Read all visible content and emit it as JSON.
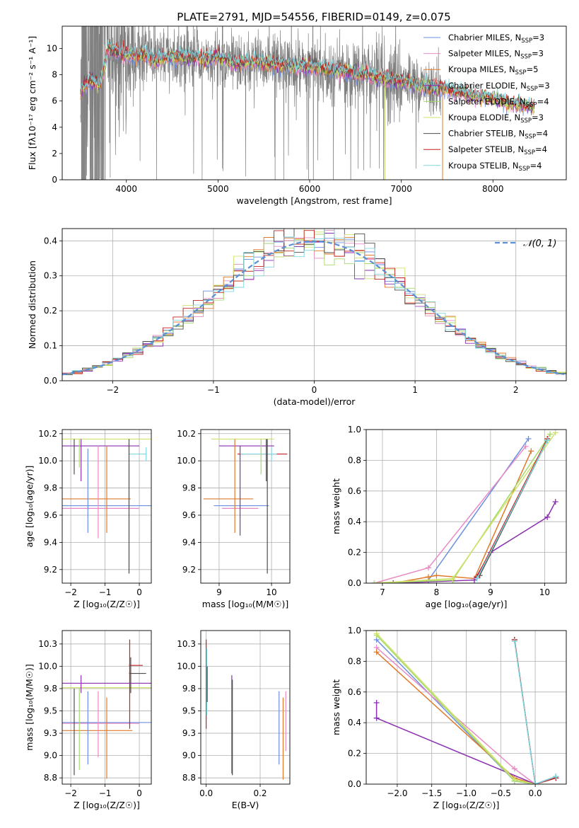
{
  "page_title": "PLATE=2791, MJD=54556, FIBERID=0149, z=0.075",
  "colors": {
    "chabrier_miles": "#6b8fe0",
    "salpeter_miles": "#e88bc4",
    "kroupa_miles": "#e07a2a",
    "chabrier_elodie": "#8a2fb0",
    "salpeter_elodie": "#a6d96a",
    "kroupa_elodie": "#cfe36b",
    "chabrier_stelib": "#4d4d4d",
    "salpeter_stelib": "#c42020",
    "kroupa_stelib": "#7fd6e0",
    "data": "#7f7f7f",
    "normal": "#5b8fd6",
    "grid": "#b0b0b0"
  },
  "legend": [
    {
      "label": "Chabrier MILES, N",
      "sub": "SSP",
      "tail": "=3",
      "color": "#6b8fe0"
    },
    {
      "label": "Salpeter MILES, N",
      "sub": "SSP",
      "tail": "=3",
      "color": "#e88bc4"
    },
    {
      "label": "Kroupa MILES, N",
      "sub": "SSP",
      "tail": "=5",
      "color": "#e07a2a"
    },
    {
      "label": "Chabrier ELODIE, N",
      "sub": "SSP",
      "tail": "=3",
      "color": "#8a2fb0"
    },
    {
      "label": "Salpeter ELODIE, N",
      "sub": "SSP",
      "tail": "=4",
      "color": "#a6d96a"
    },
    {
      "label": "Kroupa ELODIE, N",
      "sub": "SSP",
      "tail": "=3",
      "color": "#cfe36b"
    },
    {
      "label": "Chabrier STELIB, N",
      "sub": "SSP",
      "tail": "=4",
      "color": "#4d4d4d"
    },
    {
      "label": "Salpeter STELIB, N",
      "sub": "SSP",
      "tail": "=4",
      "color": "#c42020"
    },
    {
      "label": "Kroupa STELIB, N",
      "sub": "SSP",
      "tail": "=4",
      "color": "#7fd6e0"
    }
  ],
  "chart_data": [
    {
      "id": "spectrum",
      "type": "line",
      "xlabel": "wavelength [Angstrom, rest frame]",
      "ylabel": "Flux [fλ10⁻¹⁷ erg cm⁻² s⁻¹ A⁻¹]",
      "xlim": [
        3300,
        8800
      ],
      "ylim": [
        0,
        11.7
      ],
      "xticks": [
        4000,
        5000,
        6000,
        7000,
        8000
      ],
      "yticks": [
        0,
        2,
        4,
        6,
        8,
        10
      ],
      "data_range": [
        3500,
        7430
      ],
      "model_range": [
        3500,
        8450
      ],
      "model_curve": {
        "x": [
          3500,
          3600,
          3700,
          3750,
          3800,
          3900,
          4000,
          4100,
          4200,
          4300,
          4500,
          4700,
          4900,
          5000,
          5200,
          5400,
          5600,
          5800,
          6000,
          6200,
          6400,
          6600,
          6800,
          7000,
          7200,
          7400,
          7600,
          7800,
          8000,
          8200,
          8450
        ],
        "y": [
          6.8,
          7.6,
          7.2,
          8.2,
          10.1,
          9.7,
          9.5,
          9.4,
          9.6,
          9.0,
          9.4,
          9.3,
          9.2,
          9.3,
          8.9,
          9.0,
          8.8,
          8.7,
          8.6,
          8.4,
          8.2,
          8.0,
          7.7,
          7.5,
          7.2,
          7.0,
          6.7,
          6.4,
          6.2,
          5.8,
          5.5
        ]
      }
    },
    {
      "id": "residual-histogram",
      "type": "line",
      "xlabel": "(data-model)/error",
      "ylabel": "Normed distribution",
      "xlim": [
        -2.5,
        2.5
      ],
      "ylim": [
        0,
        0.435
      ],
      "xticks": [
        -2,
        -1,
        0,
        1,
        2
      ],
      "yticks": [
        0.0,
        0.1,
        0.2,
        0.3,
        0.4
      ],
      "legend": "𝒩(0, 1)",
      "bin_width": 0.1,
      "histogram_range": [
        -2.5,
        2.5
      ]
    },
    {
      "id": "age-vs-Z",
      "type": "scatter",
      "xlabel": "Z [log₁₀(Z/Z☉)]",
      "ylabel": "age  [log₁₀(age/yr)]",
      "xlim": [
        -2.25,
        0.35
      ],
      "ylim": [
        9.1,
        10.23
      ],
      "xticks": [
        -2,
        -1,
        0
      ],
      "yticks": [
        9.2,
        9.4,
        9.6,
        9.8,
        10.0,
        10.2
      ],
      "hlines": [
        {
          "y": 10.16,
          "x0": -2.25,
          "x1": 0.35,
          "color": "#cfe36b"
        },
        {
          "y": 10.11,
          "x0": -2.25,
          "x1": 0.0,
          "color": "#8a2fb0"
        },
        {
          "y": 10.05,
          "x0": -0.3,
          "x1": 0.2,
          "color": "#7fd6e0"
        },
        {
          "y": 9.72,
          "x0": -2.25,
          "x1": -0.25,
          "color": "#e07a2a"
        },
        {
          "y": 9.67,
          "x0": -2.25,
          "x1": 0.35,
          "color": "#6b8fe0"
        },
        {
          "y": 9.65,
          "x0": -2.25,
          "x1": 0.0,
          "color": "#e88bc4"
        }
      ],
      "vlines": [
        {
          "x": -1.9,
          "y0": 9.9,
          "y1": 10.16,
          "color": "#4d4d4d"
        },
        {
          "x": -1.75,
          "y0": 9.95,
          "y1": 10.16,
          "color": "#a6d96a"
        },
        {
          "x": -1.7,
          "y0": 9.85,
          "y1": 10.16,
          "color": "#8a2fb0"
        },
        {
          "x": -1.5,
          "y0": 9.47,
          "y1": 10.09,
          "color": "#6b8fe0"
        },
        {
          "x": -1.2,
          "y0": 9.43,
          "y1": 10.11,
          "color": "#e88bc4"
        },
        {
          "x": -0.95,
          "y0": 9.47,
          "y1": 10.11,
          "color": "#e07a2a"
        },
        {
          "x": -0.3,
          "y0": 9.17,
          "y1": 10.16,
          "color": "#4d4d4d"
        },
        {
          "x": 0.2,
          "y0": 10.0,
          "y1": 10.1,
          "color": "#7fd6e0"
        }
      ]
    },
    {
      "id": "age-vs-mass",
      "type": "scatter",
      "xlabel": "mass [log₁₀(M/M☉)]",
      "ylabel": "",
      "xlim": [
        8.65,
        10.35
      ],
      "ylim": [
        9.1,
        10.23
      ],
      "xticks": [
        9,
        10
      ],
      "yticks": [
        9.2,
        9.4,
        9.6,
        9.8,
        10.0,
        10.2
      ],
      "hlines": [
        {
          "y": 10.16,
          "x0": 8.85,
          "x1": 10.05,
          "color": "#cfe36b"
        },
        {
          "y": 10.11,
          "x0": 9.0,
          "x1": 10.05,
          "color": "#8a2fb0"
        },
        {
          "y": 10.05,
          "x0": 9.35,
          "x1": 10.3,
          "color": "#c42020"
        },
        {
          "y": 10.05,
          "x0": 9.4,
          "x1": 10.1,
          "color": "#7fd6e0"
        },
        {
          "y": 9.72,
          "x0": 8.7,
          "x1": 9.65,
          "color": "#e07a2a"
        },
        {
          "y": 9.67,
          "x0": 8.9,
          "x1": 9.95,
          "color": "#6b8fe0"
        },
        {
          "y": 9.65,
          "x0": 9.05,
          "x1": 9.75,
          "color": "#e88bc4"
        }
      ],
      "vlines": [
        {
          "x": 9.3,
          "y0": 9.47,
          "y1": 10.16,
          "color": "#e07a2a"
        },
        {
          "x": 9.4,
          "y0": 9.45,
          "y1": 10.11,
          "color": "#8a2fb0"
        },
        {
          "x": 9.8,
          "y0": 9.9,
          "y1": 10.16,
          "color": "#a6d96a"
        },
        {
          "x": 9.9,
          "y0": 9.85,
          "y1": 10.16,
          "color": "#4d4d4d"
        },
        {
          "x": 9.92,
          "y0": 9.17,
          "y1": 10.16,
          "color": "#4d4d4d"
        },
        {
          "x": 10.0,
          "y0": 10.0,
          "y1": 10.1,
          "color": "#7fd6e0"
        }
      ]
    },
    {
      "id": "mass-weight-vs-age",
      "type": "line",
      "xlabel": "age  [log₁₀(age/yr)]",
      "ylabel": "mass weight",
      "xlim": [
        6.7,
        10.4
      ],
      "ylim": [
        0,
        1.0
      ],
      "xticks": [
        7,
        8,
        9,
        10
      ],
      "yticks": [
        0.0,
        0.2,
        0.4,
        0.6,
        0.8,
        1.0
      ],
      "series": [
        {
          "color": "#6b8fe0",
          "x": [
            6.85,
            7.85,
            9.7
          ],
          "y": [
            0.0,
            0.02,
            0.94
          ]
        },
        {
          "color": "#e88bc4",
          "x": [
            6.85,
            7.85,
            9.65
          ],
          "y": [
            0.0,
            0.1,
            0.89
          ]
        },
        {
          "color": "#e07a2a",
          "x": [
            7.2,
            7.85,
            8.0,
            8.7,
            9.75
          ],
          "y": [
            0.0,
            0.04,
            0.05,
            0.03,
            0.86
          ]
        },
        {
          "color": "#8a2fb0",
          "x": [
            7.2,
            8.7,
            9.0,
            10.05,
            10.2
          ],
          "y": [
            0.0,
            0.02,
            0.2,
            0.43,
            0.53
          ]
        },
        {
          "color": "#a6d96a",
          "x": [
            6.85,
            8.3,
            10.1
          ],
          "y": [
            0.0,
            0.02,
            0.97
          ]
        },
        {
          "color": "#cfe36b",
          "x": [
            6.85,
            8.3,
            10.2
          ],
          "y": [
            0.0,
            0.03,
            0.98
          ]
        },
        {
          "color": "#4d4d4d",
          "x": [
            8.8,
            10.05
          ],
          "y": [
            0.05,
            0.93
          ]
        },
        {
          "color": "#c42020",
          "x": [
            8.75,
            10.05
          ],
          "y": [
            0.04,
            0.94
          ]
        },
        {
          "color": "#7fd6e0",
          "x": [
            8.75,
            10.05
          ],
          "y": [
            0.03,
            0.93
          ]
        }
      ]
    },
    {
      "id": "mass-vs-Z",
      "type": "scatter",
      "xlabel": "Z [log₁₀(Z/Z☉)]",
      "ylabel": "mass [log₁₀(M/M☉)]",
      "xlim": [
        -2.25,
        0.35
      ],
      "ylim": [
        8.68,
        10.4
      ],
      "xticks": [
        -2,
        -1,
        0
      ],
      "yticks": [
        8.75,
        9.0,
        9.25,
        9.5,
        9.75,
        10.0,
        10.25
      ],
      "hlines": [
        {
          "y": 10.01,
          "x0": -0.3,
          "x1": 0.1,
          "color": "#c42020"
        },
        {
          "y": 9.92,
          "x0": -0.3,
          "x1": 0.2,
          "color": "#4d4d4d"
        },
        {
          "y": 9.81,
          "x0": -2.25,
          "x1": 0.35,
          "color": "#8a2fb0"
        },
        {
          "y": 9.76,
          "x0": -2.25,
          "x1": 0.35,
          "color": "#cfe36b"
        },
        {
          "y": 9.37,
          "x0": -2.25,
          "x1": 0.35,
          "color": "#6b8fe0"
        },
        {
          "y": 9.36,
          "x0": -2.25,
          "x1": 0.0,
          "color": "#e88bc4"
        },
        {
          "y": 9.28,
          "x0": -2.25,
          "x1": -0.2,
          "color": "#e07a2a"
        }
      ],
      "vlines": [
        {
          "x": -1.9,
          "y0": 8.78,
          "y1": 9.75,
          "color": "#4d4d4d"
        },
        {
          "x": -1.75,
          "y0": 8.84,
          "y1": 9.76,
          "color": "#a6d96a"
        },
        {
          "x": -1.7,
          "y0": 9.7,
          "y1": 9.9,
          "color": "#8a2fb0"
        },
        {
          "x": -1.5,
          "y0": 8.9,
          "y1": 9.72,
          "color": "#6b8fe0"
        },
        {
          "x": -1.2,
          "y0": 8.98,
          "y1": 9.72,
          "color": "#e88bc4"
        },
        {
          "x": -0.95,
          "y0": 8.74,
          "y1": 9.65,
          "color": "#e07a2a"
        },
        {
          "x": -0.28,
          "y0": 9.3,
          "y1": 10.3,
          "color": "#c42020"
        },
        {
          "x": -0.25,
          "y0": 9.7,
          "y1": 10.1,
          "color": "#4d4d4d"
        }
      ]
    },
    {
      "id": "mass-vs-EBV",
      "type": "scatter",
      "xlabel": "E(B-V)",
      "ylabel": "",
      "xlim": [
        -0.02,
        0.31
      ],
      "ylim": [
        8.68,
        10.4
      ],
      "xticks": [
        0.0,
        0.2
      ],
      "yticks": [
        8.75,
        9.0,
        9.25,
        9.5,
        9.75,
        10.0,
        10.25
      ],
      "vlines": [
        {
          "x": 0.0,
          "y0": 9.3,
          "y1": 10.3,
          "color": "#c42020"
        },
        {
          "x": 0.002,
          "y0": 9.45,
          "y1": 10.2,
          "color": "#7fd6e0"
        },
        {
          "x": 0.004,
          "y0": 9.6,
          "y1": 10.0,
          "color": "#4d4d4d"
        },
        {
          "x": 0.095,
          "y0": 8.8,
          "y1": 9.9,
          "color": "#8a2fb0"
        },
        {
          "x": 0.097,
          "y0": 8.78,
          "y1": 9.85,
          "color": "#4d4d4d"
        },
        {
          "x": 0.27,
          "y0": 8.9,
          "y1": 9.72,
          "color": "#6b8fe0"
        },
        {
          "x": 0.285,
          "y0": 8.73,
          "y1": 9.65,
          "color": "#e07a2a"
        },
        {
          "x": 0.295,
          "y0": 9.05,
          "y1": 9.72,
          "color": "#e88bc4"
        }
      ]
    },
    {
      "id": "mass-weight-vs-Z",
      "type": "line",
      "xlabel": "Z [log₁₀(Z/Z☉)]",
      "ylabel": "mass weight",
      "xlim": [
        -2.45,
        0.45
      ],
      "ylim": [
        0,
        1.0
      ],
      "xticks": [
        -2.0,
        -1.5,
        -1.0,
        -0.5,
        0.0
      ],
      "yticks": [
        0.0,
        0.2,
        0.4,
        0.6,
        0.8,
        1.0
      ],
      "series": [
        {
          "color": "#6b8fe0",
          "x": [
            -2.3,
            -0.3,
            0.0,
            0.3
          ],
          "y": [
            0.94,
            0.02,
            0.0,
            0.05
          ]
        },
        {
          "color": "#e88bc4",
          "x": [
            -2.3,
            -0.3,
            0.0
          ],
          "y": [
            0.89,
            0.1,
            0.0
          ]
        },
        {
          "color": "#e07a2a",
          "x": [
            -2.3,
            -0.3,
            0.0,
            0.3
          ],
          "y": [
            0.86,
            0.04,
            0.0,
            0.05
          ]
        },
        {
          "color": "#8a2fb0",
          "x": [
            -2.3,
            -2.3,
            0.0
          ],
          "y": [
            0.53,
            0.43,
            0.0
          ]
        },
        {
          "color": "#a6d96a",
          "x": [
            -2.3,
            -0.3,
            0.0
          ],
          "y": [
            0.97,
            0.02,
            0.0
          ]
        },
        {
          "color": "#cfe36b",
          "x": [
            -2.3,
            -0.3,
            0.0
          ],
          "y": [
            0.98,
            0.03,
            0.0
          ]
        },
        {
          "color": "#4d4d4d",
          "x": [
            -0.3,
            0.0,
            0.3
          ],
          "y": [
            0.94,
            0.0,
            0.04
          ]
        },
        {
          "color": "#c42020",
          "x": [
            -0.3,
            0.0,
            0.3
          ],
          "y": [
            0.94,
            0.0,
            0.04
          ]
        },
        {
          "color": "#7fd6e0",
          "x": [
            -0.3,
            0.0,
            0.3
          ],
          "y": [
            0.93,
            0.0,
            0.05
          ]
        }
      ]
    }
  ]
}
